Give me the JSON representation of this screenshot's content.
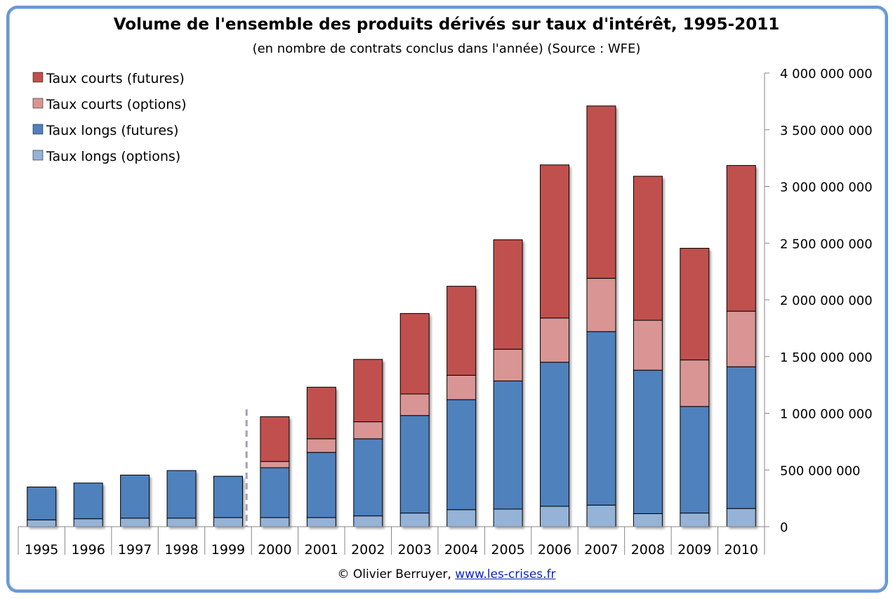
{
  "header": {
    "title": "Volume de l'ensemble des produits dérivés sur taux d'intérêt, 1995-2011",
    "subtitle": "(en nombre de contrats conclus dans l'année) (Source : WFE)"
  },
  "footer": {
    "credit": "© Olivier Berruyer,",
    "link": "www.les-crises.fr"
  },
  "colors": {
    "taux_courts_futures": "#c0504d",
    "taux_courts_options": "#d99594",
    "taux_longs_futures": "#4f81bd",
    "taux_longs_options": "#95b3d7",
    "frame": "#6a98d0",
    "separator": "#9e9ec4"
  },
  "chart_data": {
    "type": "bar",
    "stacked": true,
    "categories": [
      "1995",
      "1996",
      "1997",
      "1998",
      "1999",
      "2000",
      "2001",
      "2002",
      "2003",
      "2004",
      "2005",
      "2006",
      "2007",
      "2008",
      "2009",
      "2010"
    ],
    "series": [
      {
        "name": "Taux longs (options)",
        "color": "#95b3d7",
        "values": [
          60000000,
          70000000,
          75000000,
          75000000,
          80000000,
          80000000,
          80000000,
          95000000,
          120000000,
          150000000,
          155000000,
          180000000,
          190000000,
          115000000,
          120000000,
          160000000
        ]
      },
      {
        "name": "Taux longs (futures)",
        "color": "#4f81bd",
        "values": [
          290000000,
          315000000,
          380000000,
          420000000,
          365000000,
          440000000,
          575000000,
          680000000,
          860000000,
          970000000,
          1130000000,
          1270000000,
          1530000000,
          1265000000,
          940000000,
          1250000000
        ]
      },
      {
        "name": "Taux courts (options)",
        "color": "#d99594",
        "values": [
          0,
          0,
          0,
          0,
          0,
          55000000,
          120000000,
          150000000,
          190000000,
          215000000,
          280000000,
          390000000,
          470000000,
          440000000,
          410000000,
          490000000
        ]
      },
      {
        "name": "Taux courts (futures)",
        "color": "#c0504d",
        "values": [
          0,
          0,
          0,
          0,
          0,
          395000000,
          455000000,
          550000000,
          710000000,
          785000000,
          965000000,
          1350000000,
          1520000000,
          1270000000,
          985000000,
          1285000000
        ]
      }
    ],
    "legend_order": [
      "Taux courts (futures)",
      "Taux courts (options)",
      "Taux longs (futures)",
      "Taux longs (options)"
    ],
    "legend_placement": "top-left",
    "y_axis": {
      "position": "right",
      "ylim": [
        0,
        4000000000
      ],
      "ticks": [
        0,
        500000000,
        1000000000,
        1500000000,
        2000000000,
        2500000000,
        3000000000,
        3500000000,
        4000000000
      ],
      "tick_labels": [
        "0",
        "500 000 000",
        "1 000 000 000",
        "1 500 000 000",
        "2 000 000 000",
        "2 500 000 000",
        "3 000 000 000",
        "3 500 000 000",
        "4 000 000 000"
      ]
    },
    "grid": false,
    "annotation": "dashed vertical separator between 1999 and 2000"
  }
}
